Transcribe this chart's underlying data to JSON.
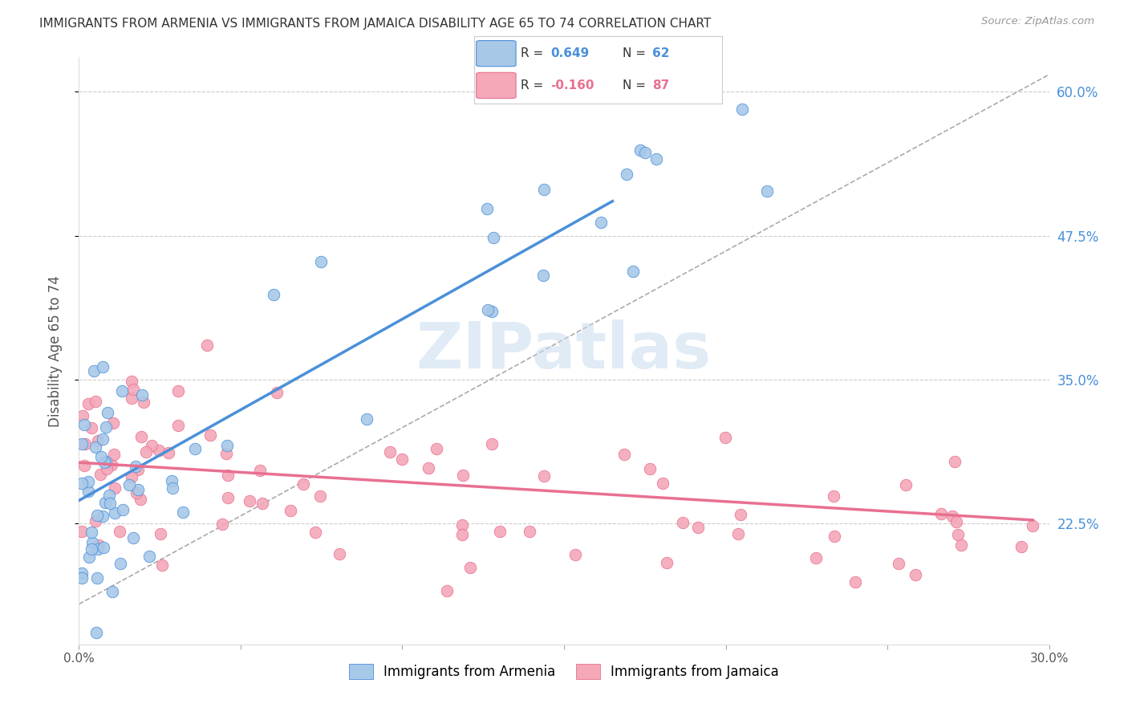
{
  "title": "IMMIGRANTS FROM ARMENIA VS IMMIGRANTS FROM JAMAICA DISABILITY AGE 65 TO 74 CORRELATION CHART",
  "source": "Source: ZipAtlas.com",
  "ylabel": "Disability Age 65 to 74",
  "xlim": [
    0.0,
    0.3
  ],
  "ylim": [
    0.12,
    0.63
  ],
  "xtick_positions": [
    0.0,
    0.05,
    0.1,
    0.15,
    0.2,
    0.25,
    0.3
  ],
  "right_yticks": [
    0.225,
    0.35,
    0.475,
    0.6
  ],
  "right_yticklabels": [
    "22.5%",
    "35.0%",
    "47.5%",
    "60.0%"
  ],
  "legend_labels": [
    "Immigrants from Armenia",
    "Immigrants from Jamaica"
  ],
  "R_armenia": 0.649,
  "N_armenia": 62,
  "R_jamaica": -0.16,
  "N_jamaica": 87,
  "color_armenia": "#A8C8E8",
  "color_jamaica": "#F4A8B8",
  "color_armenia_line": "#4A90D9",
  "color_jamaica_line": "#E87090",
  "background_color": "#FFFFFF",
  "grid_color": "#CCCCCC",
  "watermark": "ZIPatlas",
  "arm_line_x0": 0.0,
  "arm_line_y0": 0.245,
  "arm_line_x1": 0.165,
  "arm_line_y1": 0.505,
  "jam_line_x0": 0.0,
  "jam_line_y0": 0.278,
  "jam_line_x1": 0.295,
  "jam_line_y1": 0.228,
  "ref_line_x0": 0.0,
  "ref_line_y0": 0.155,
  "ref_line_x1": 0.3,
  "ref_line_y1": 0.615
}
